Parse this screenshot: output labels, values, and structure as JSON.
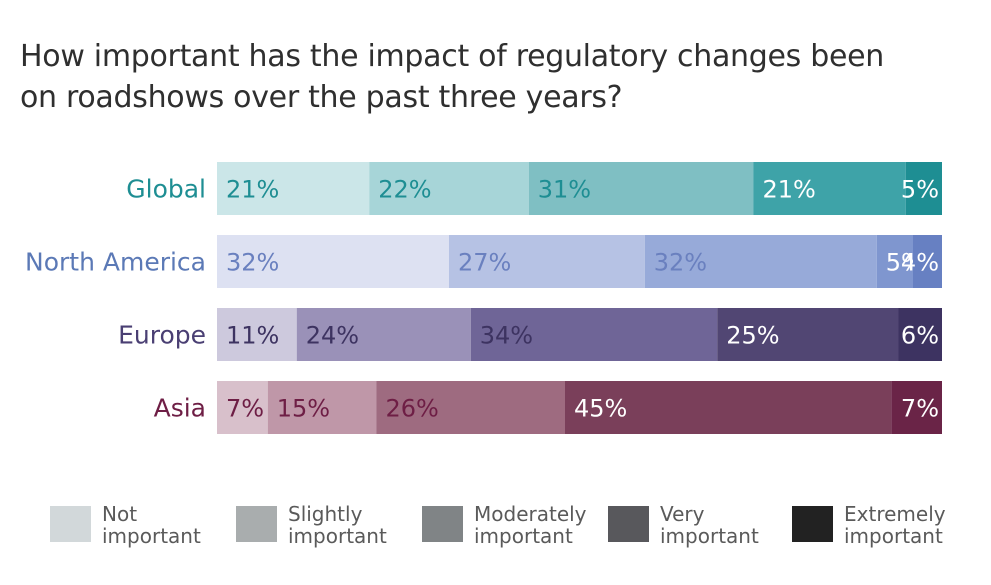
{
  "title": "How important has the impact of regulatory changes been on roadshows over the past three years?",
  "chart_data": {
    "type": "bar",
    "orientation": "horizontal",
    "stacked": true,
    "unit": "%",
    "categories": [
      "Global",
      "North America",
      "Europe",
      "Asia"
    ],
    "category_colors": [
      "#1e8e93",
      "#5b79b6",
      "#4a3f73",
      "#6e1e45"
    ],
    "series": [
      {
        "name": "Not important",
        "values": [
          21,
          32,
          11,
          7
        ]
      },
      {
        "name": "Slightly important",
        "values": [
          22,
          27,
          24,
          15
        ]
      },
      {
        "name": "Moderately important",
        "values": [
          31,
          32,
          34,
          26
        ]
      },
      {
        "name": "Very important",
        "values": [
          21,
          5,
          25,
          45
        ]
      },
      {
        "name": "Extremely important",
        "values": [
          5,
          4,
          6,
          7
        ]
      }
    ],
    "segment_colors": [
      [
        "#cbe6e8",
        "#a7d5d8",
        "#7fbfc3",
        "#3ea3a8",
        "#1e8e93"
      ],
      [
        "#dde1f2",
        "#b6c2e4",
        "#97aad9",
        "#7f96cf",
        "#6780c2"
      ],
      [
        "#cdc9dd",
        "#9a91b8",
        "#6f6597",
        "#514673",
        "#3d3361"
      ],
      [
        "#d8c0cb",
        "#bf97a8",
        "#9e6b80",
        "#7a3f5a",
        "#6a2447"
      ]
    ],
    "label_colors": [
      [
        "#1e8e93",
        "#1e8e93",
        "#1e8e93",
        "#ffffff",
        "#ffffff"
      ],
      [
        "#6a80bf",
        "#6a80bf",
        "#6a80bf",
        "#ffffff",
        "#ffffff"
      ],
      [
        "#3d3361",
        "#3d3361",
        "#3d3361",
        "#ffffff",
        "#ffffff"
      ],
      [
        "#6e1e45",
        "#6e1e45",
        "#6e1e45",
        "#ffffff",
        "#ffffff"
      ]
    ],
    "legend": {
      "placement": "bottom",
      "items": [
        {
          "label": "Not\nimportant",
          "color": "#d2d8da"
        },
        {
          "label": "Slightly\nimportant",
          "color": "#a9adae"
        },
        {
          "label": "Moderately\nimportant",
          "color": "#808486"
        },
        {
          "label": "Very\nimportant",
          "color": "#58585c"
        },
        {
          "label": "Extremely\nimportant",
          "color": "#222222"
        }
      ]
    }
  }
}
